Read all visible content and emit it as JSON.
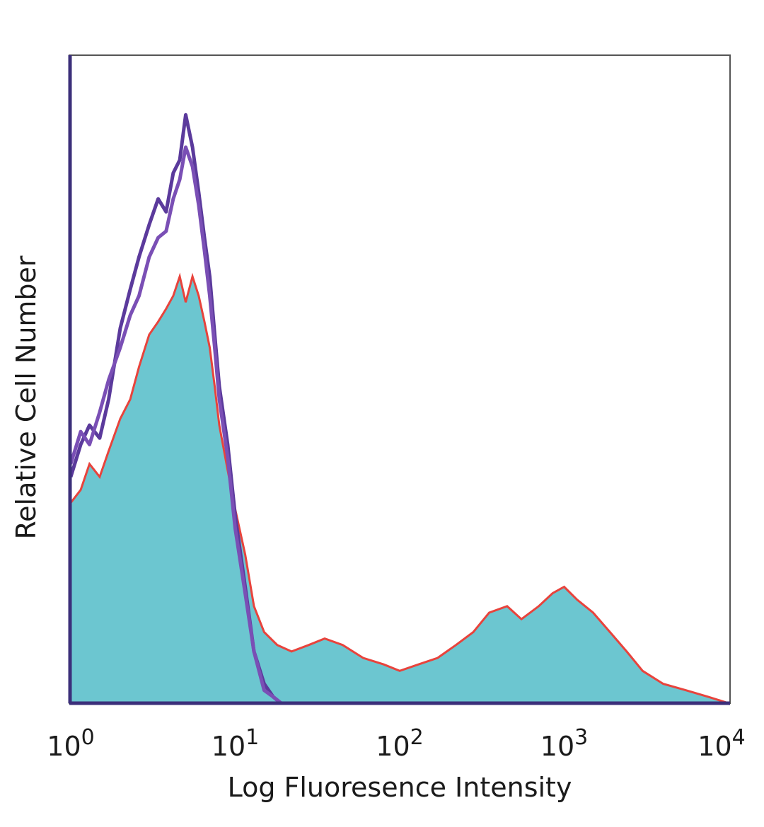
{
  "chart_data": {
    "type": "area",
    "title": "",
    "xlabel": "Log Fluoresence Intensity",
    "ylabel": "Relative Cell Number",
    "x_scale": "log",
    "xlim": [
      1,
      10000
    ],
    "ylim": [
      0,
      100
    ],
    "grid": false,
    "legend": "none",
    "x_ticks": [
      {
        "value": 1,
        "base": "10",
        "exp": "0"
      },
      {
        "value": 10,
        "base": "10",
        "exp": "1"
      },
      {
        "value": 100,
        "base": "10",
        "exp": "2"
      },
      {
        "value": 1000,
        "base": "10",
        "exp": "3"
      },
      {
        "value": 10000,
        "base": "10",
        "exp": "4"
      }
    ],
    "colors": {
      "filled": "#6cc6d0",
      "filled_outline": "#e8433c",
      "isotype": "#5b3a9c",
      "isotype_2": "#7a4fb5",
      "axis": "#3b2f7a"
    },
    "series": [
      {
        "style": "filled",
        "x": [
          1.0,
          1.15,
          1.3,
          1.5,
          1.7,
          2.0,
          2.3,
          2.6,
          3.0,
          3.4,
          3.8,
          4.2,
          4.6,
          5.0,
          5.5,
          6.0,
          6.5,
          7.0,
          7.5,
          8.0,
          9.0,
          10.0,
          11.5,
          13.0,
          15.0,
          18.0,
          22.0,
          28.0,
          35.0,
          45.0,
          60.0,
          80.0,
          100.0,
          130.0,
          170.0,
          220.0,
          280.0,
          350.0,
          450.0,
          550.0,
          700.0,
          850.0,
          1000.0,
          1200.0,
          1500.0,
          1900.0,
          2400.0,
          3000.0,
          4000.0,
          5500.0,
          7500.0,
          10000.0
        ],
        "values": [
          31,
          33,
          37,
          35,
          39,
          44,
          47,
          52,
          57,
          59,
          61,
          63,
          66,
          62,
          66,
          63,
          59,
          55,
          49,
          43,
          36,
          30,
          23,
          15,
          11,
          9,
          8,
          9,
          10,
          9,
          7,
          6,
          5,
          6,
          7,
          9,
          11,
          14,
          15,
          13,
          15,
          17,
          18,
          16,
          14,
          11,
          8,
          5,
          3,
          2,
          1,
          0
        ]
      },
      {
        "style": "line",
        "x": [
          1.0,
          1.15,
          1.3,
          1.5,
          1.7,
          2.0,
          2.3,
          2.6,
          3.0,
          3.4,
          3.8,
          4.2,
          4.6,
          5.0,
          5.5,
          6.0,
          6.5,
          7.0,
          7.5,
          8.0,
          9.0,
          10.0,
          11.5,
          13.0,
          15.0,
          17.0,
          19.0
        ],
        "values": [
          35,
          40,
          43,
          41,
          47,
          58,
          64,
          69,
          74,
          78,
          76,
          82,
          84,
          91,
          86,
          79,
          72,
          66,
          57,
          49,
          40,
          29,
          18,
          8,
          3,
          1,
          0
        ]
      },
      {
        "style": "line",
        "x": [
          1.0,
          1.15,
          1.3,
          1.5,
          1.7,
          2.0,
          2.3,
          2.6,
          3.0,
          3.4,
          3.8,
          4.2,
          4.6,
          5.0,
          5.5,
          6.0,
          6.5,
          7.0,
          7.5,
          8.0,
          9.0,
          10.0,
          11.5,
          13.0,
          15.0,
          17.0,
          19.0
        ],
        "values": [
          37,
          42,
          40,
          45,
          50,
          55,
          60,
          63,
          69,
          72,
          73,
          78,
          81,
          86,
          83,
          77,
          70,
          63,
          55,
          47,
          38,
          27,
          17,
          8,
          2,
          1,
          0
        ]
      }
    ]
  }
}
